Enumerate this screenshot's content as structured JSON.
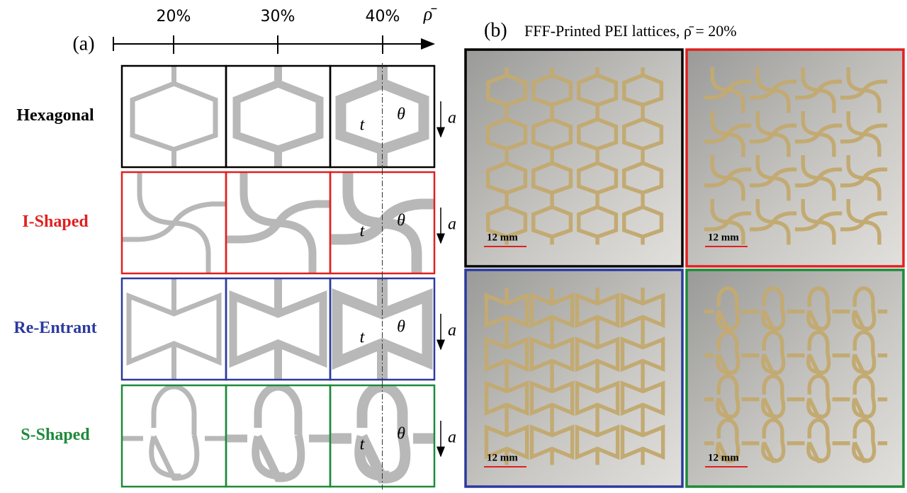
{
  "panel_a": {
    "label": "(a)",
    "axis": {
      "symbol": "ρ̄",
      "ticks": [
        "20%",
        "30%",
        "40%"
      ]
    },
    "rows": [
      {
        "name": "Hexagonal",
        "kind": "hex",
        "color": "#000000"
      },
      {
        "name": "I-Shaped",
        "kind": "i",
        "color": "#e02020"
      },
      {
        "name": "Re-Entrant",
        "kind": "re",
        "color": "#2b3a9e"
      },
      {
        "name": "S-Shaped",
        "kind": "s",
        "color": "#1e8a3a"
      }
    ],
    "symbols": {
      "t": "t",
      "theta": "θ",
      "a": "a"
    }
  },
  "panel_b": {
    "label": "(b)",
    "title": "FFF-Printed PEI lattices, ρ̄ = 20%",
    "scale_bar": "12 mm"
  }
}
